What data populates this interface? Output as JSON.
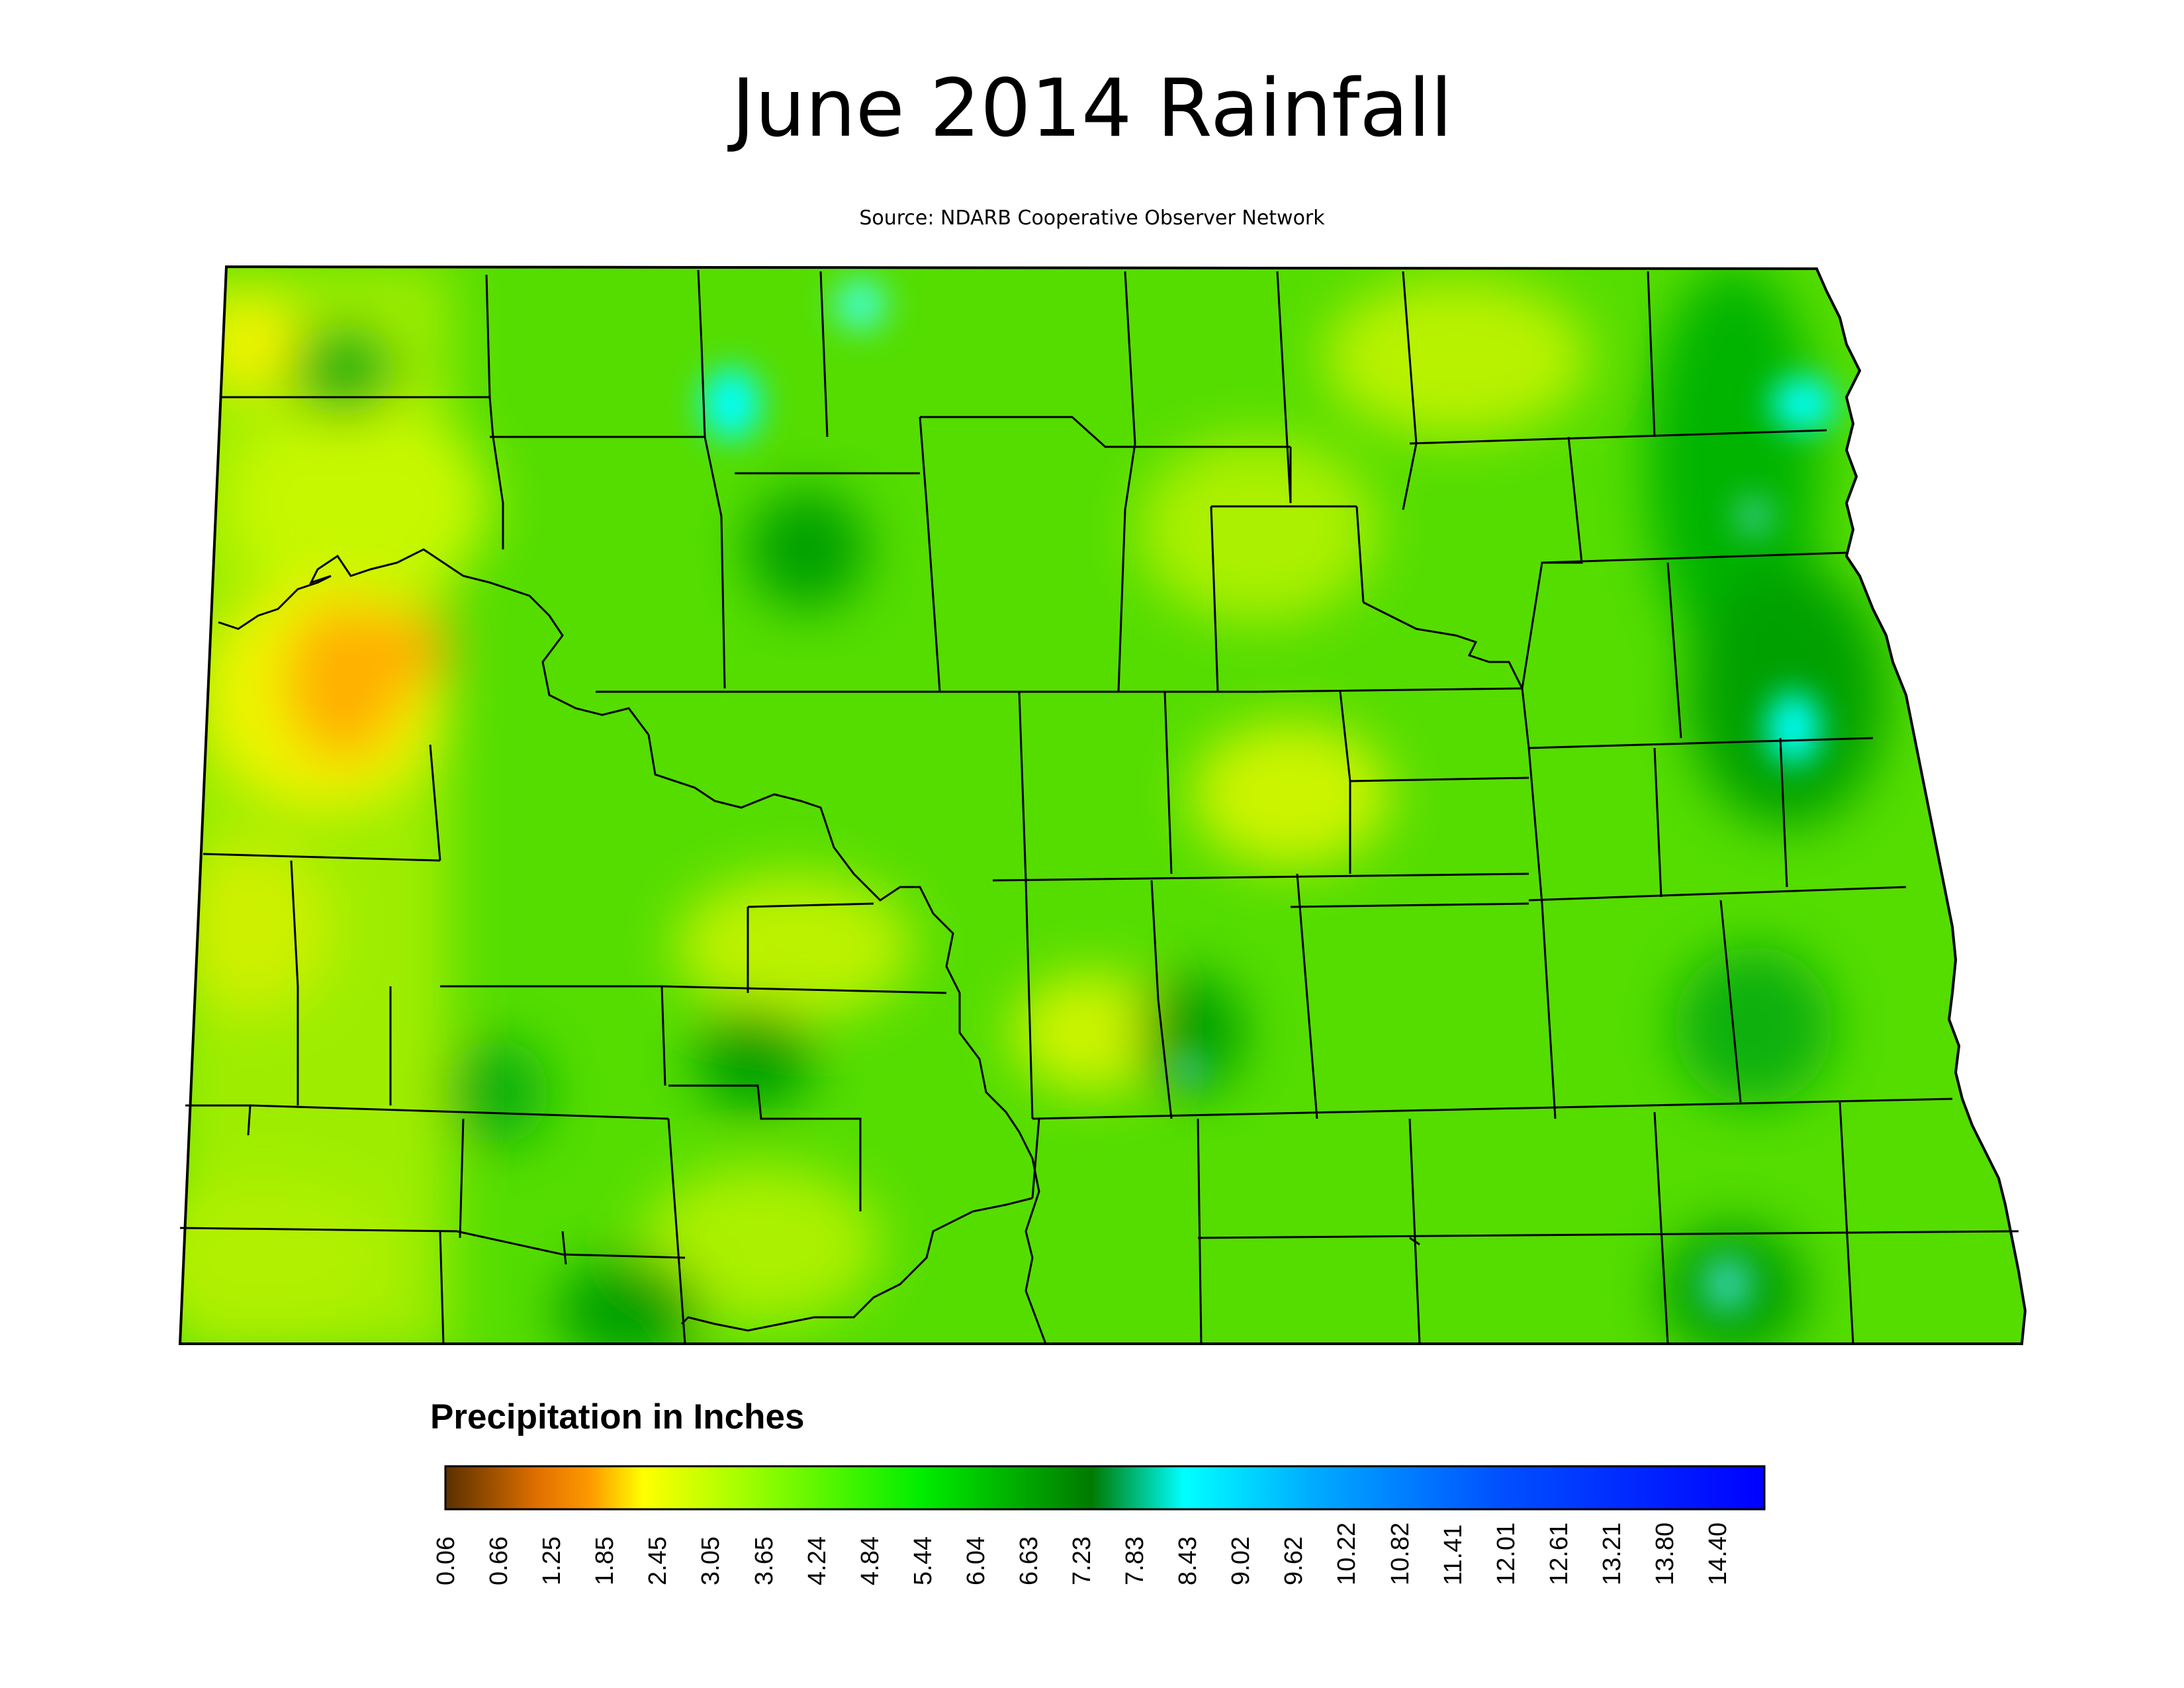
{
  "title": "June 2014 Rainfall",
  "source": "Source: NDARB Cooperative Observer Network",
  "legend": {
    "title": "Precipitation in Inches",
    "ticks": [
      "0.06",
      "0.66",
      "1.25",
      "1.85",
      "2.45",
      "3.05",
      "3.65",
      "4.24",
      "4.84",
      "5.44",
      "6.04",
      "6.63",
      "7.23",
      "7.83",
      "8.43",
      "9.02",
      "9.62",
      "10.22",
      "10.82",
      "11.41",
      "12.01",
      "12.61",
      "13.21",
      "13.80",
      "14.40"
    ],
    "colors": [
      "#6b3a00",
      "#c86400",
      "#ff8c00",
      "#ffff00",
      "#aaff00",
      "#00ee00",
      "#008a00",
      "#00ffff",
      "#0080ff",
      "#0000ff"
    ]
  },
  "map": {
    "region": "North Dakota",
    "base_color": "#44dd00",
    "boundary_color": "#000000"
  }
}
